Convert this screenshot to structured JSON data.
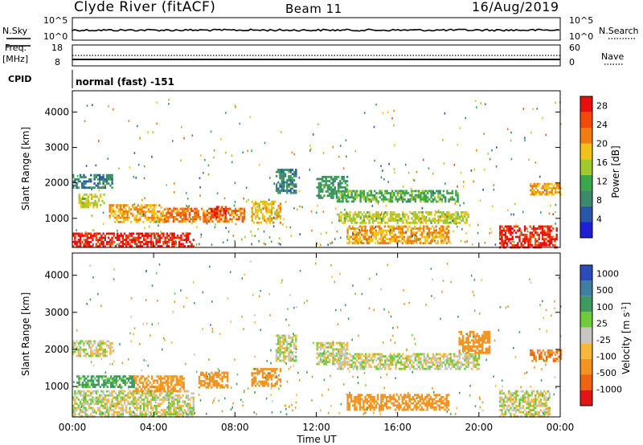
{
  "header": {
    "station": "Clyde River (fitACF)",
    "beam": "Beam 11",
    "date": "16/Aug/2019"
  },
  "left_labels": {
    "nsky": "N.Sky",
    "freq_line1": "Freq.",
    "freq_line2": "[MHz]",
    "cpid": "CPID"
  },
  "right_labels": {
    "nsearch": "N.Search",
    "nave": "Nave"
  },
  "scales": {
    "noise_top": "10^5",
    "noise_bottom": "10^0",
    "freq_top": "18",
    "freq_bottom": "8",
    "nave_top": "60",
    "nave_bottom": "0"
  },
  "cpid_text": "normal (fast) -151",
  "colors": {
    "trace": "#000000",
    "power_scale": [
      "#1f1fd6",
      "#2a56a8",
      "#3b8a6e",
      "#3aa84a",
      "#a0c92e",
      "#f2c218",
      "#f07c12",
      "#f34a0a",
      "#e8100a"
    ],
    "velocity_scale": [
      "#2a4bb8",
      "#3f7fa0",
      "#3d9b5d",
      "#6fcb3a",
      "#c8c6c2",
      "#f7b73a",
      "#f39422",
      "#ee6410",
      "#e41515"
    ],
    "ground_scatter": "#bdbdbd"
  },
  "chart_data": [
    {
      "type": "heatmap",
      "name_printed": "",
      "xlabel": "Time UT",
      "ylabel": "Slant Range [km]",
      "x_ticks": [
        "00:00",
        "04:00",
        "08:00",
        "12:00",
        "16:00",
        "20:00",
        "00:00"
      ],
      "xlim_hours": [
        0,
        24
      ],
      "ylim": [
        180,
        4600
      ],
      "y_ticks": [
        "1000",
        "2000",
        "3000",
        "4000"
      ],
      "colorbar_label": "Power [dB]",
      "colorbar_ticks": [
        "4",
        "8",
        "12",
        "16",
        "20",
        "24",
        "28"
      ],
      "colorbar_range": [
        0,
        30
      ],
      "features": [
        {
          "t": [
            0.0,
            2.0
          ],
          "range": [
            1850,
            2250
          ],
          "value": 8
        },
        {
          "t": [
            0.3,
            1.6
          ],
          "range": [
            1300,
            1700
          ],
          "value": 16
        },
        {
          "t": [
            0.0,
            6.0
          ],
          "range": [
            200,
            600
          ],
          "value": 28
        },
        {
          "t": [
            1.8,
            4.5
          ],
          "range": [
            900,
            1400
          ],
          "value": 20
        },
        {
          "t": [
            4.5,
            8.5
          ],
          "range": [
            900,
            1300
          ],
          "value": 22
        },
        {
          "t": [
            6.8,
            7.5
          ],
          "range": [
            1000,
            1350
          ],
          "value": 26
        },
        {
          "t": [
            8.8,
            10.2
          ],
          "range": [
            900,
            1500
          ],
          "value": 18
        },
        {
          "t": [
            10.0,
            11.0
          ],
          "range": [
            1700,
            2400
          ],
          "value": 8
        },
        {
          "t": [
            12.0,
            13.5
          ],
          "range": [
            1600,
            2200
          ],
          "value": 10
        },
        {
          "t": [
            13.0,
            19.0
          ],
          "range": [
            1450,
            1800
          ],
          "value": 12
        },
        {
          "t": [
            13.5,
            18.5
          ],
          "range": [
            300,
            800
          ],
          "value": 20
        },
        {
          "t": [
            13.0,
            19.5
          ],
          "range": [
            900,
            1200
          ],
          "value": 16
        },
        {
          "t": [
            21.0,
            23.8
          ],
          "range": [
            200,
            800
          ],
          "value": 28
        },
        {
          "t": [
            22.5,
            24.0
          ],
          "range": [
            1650,
            2000
          ],
          "value": 20
        }
      ]
    },
    {
      "type": "heatmap",
      "xlabel": "Time UT",
      "ylabel": "Slant Range [km]",
      "x_ticks": [
        "00:00",
        "04:00",
        "08:00",
        "12:00",
        "16:00",
        "20:00",
        "00:00"
      ],
      "xlim_hours": [
        0,
        24
      ],
      "ylim": [
        180,
        4600
      ],
      "y_ticks": [
        "1000",
        "2000",
        "3000",
        "4000"
      ],
      "colorbar_label": "Velocity [m s^-1]",
      "colorbar_ticks": [
        "1000",
        "500",
        "100",
        "25",
        "-25",
        "-100",
        "-500",
        "-1000"
      ],
      "features": [
        {
          "t": [
            0.0,
            2.0
          ],
          "range": [
            1850,
            2250
          ],
          "value": 0
        },
        {
          "t": [
            0.0,
            6.0
          ],
          "range": [
            200,
            900
          ],
          "value": 0
        },
        {
          "t": [
            0.2,
            3.0
          ],
          "range": [
            1000,
            1300
          ],
          "value": 150
        },
        {
          "t": [
            3.0,
            5.5
          ],
          "range": [
            900,
            1300
          ],
          "value": -150
        },
        {
          "t": [
            6.2,
            7.6
          ],
          "range": [
            1000,
            1400
          ],
          "value": -300
        },
        {
          "t": [
            8.8,
            10.2
          ],
          "range": [
            1000,
            1500
          ],
          "value": -300
        },
        {
          "t": [
            10.0,
            11.0
          ],
          "range": [
            1700,
            2400
          ],
          "value": 0
        },
        {
          "t": [
            12.0,
            13.5
          ],
          "range": [
            1600,
            2200
          ],
          "value": 0
        },
        {
          "t": [
            13.0,
            20.0
          ],
          "range": [
            1500,
            1900
          ],
          "value": 0
        },
        {
          "t": [
            13.5,
            18.5
          ],
          "range": [
            400,
            800
          ],
          "value": -300
        },
        {
          "t": [
            19.0,
            20.5
          ],
          "range": [
            1900,
            2500
          ],
          "value": -300
        },
        {
          "t": [
            21.0,
            23.5
          ],
          "range": [
            200,
            900
          ],
          "value": 0
        },
        {
          "t": [
            22.5,
            24.0
          ],
          "range": [
            1700,
            2000
          ],
          "value": -500
        }
      ]
    }
  ]
}
